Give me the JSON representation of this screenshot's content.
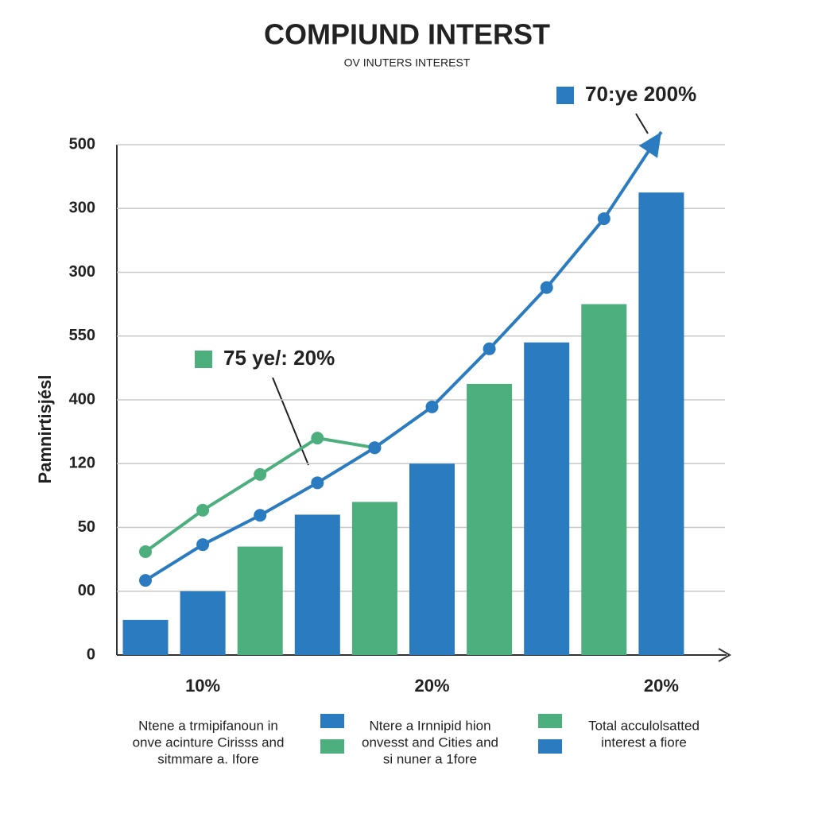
{
  "chart_data": {
    "type": "bar",
    "title": "COMPIUND INTERST",
    "subtitle": "OV INUTERS INTEREST",
    "y_label": "Pamnirtisjésl",
    "categories": [
      null,
      "10%",
      null,
      null,
      null,
      "20%",
      null,
      null,
      null,
      "20%"
    ],
    "values": [
      0.55,
      1.0,
      1.7,
      2.2,
      2.4,
      3.0,
      4.25,
      4.9,
      5.5,
      7.25
    ],
    "colors": [
      "#2a7bc0",
      "#2a7bc0",
      "#4caf7d",
      "#2a7bc0",
      "#4caf7d",
      "#2a7bc0",
      "#4caf7d",
      "#2a7bc0",
      "#4caf7d",
      "#2a7bc0"
    ],
    "lines": [
      {
        "color": "#4caf7d",
        "values": [
          1.62,
          2.27,
          2.83,
          3.4,
          3.25,
          null,
          null,
          null,
          null,
          null
        ]
      },
      {
        "color": "#2a7bc0",
        "values": [
          1.17,
          1.73,
          2.19,
          2.7,
          3.25,
          3.89,
          4.8,
          5.76,
          6.84,
          8.2
        ]
      }
    ],
    "ylim": [
      0,
      8
    ],
    "yticks": [
      0,
      {
        "value": 1,
        "label": "00"
      },
      {
        "value": 2,
        "label": "50"
      },
      {
        "value": 3,
        "label": "120"
      },
      {
        "value": 4,
        "label": "400"
      },
      {
        "value": 5,
        "label": "550"
      },
      {
        "value": 6,
        "label": "300"
      },
      {
        "value": 7,
        "label": "300"
      },
      {
        "value": 8,
        "label": "500"
      }
    ],
    "grid": true,
    "annotations": [
      {
        "text": "70:ye 200%",
        "color": "#2a7bc0"
      },
      {
        "text": "75 ye/: 20%",
        "color": "#4caf7d"
      }
    ],
    "legend": [
      {
        "lines": [
          "Ntene a trmipifanoun in",
          "onve acinture Cirisss and",
          "sitmmare a. Ifore"
        ],
        "swatches": []
      },
      {
        "lines": [
          "Ntere a Irnnipid hion",
          "onvesst and Cities and",
          "si nuner a 1fore"
        ],
        "swatches": [
          "#2a7bc0",
          "#4caf7d"
        ]
      },
      {
        "lines": [
          "Total acculolsatted",
          "interest a fiore"
        ],
        "swatches": [
          "#4caf7d",
          "#2a7bc0"
        ]
      }
    ]
  }
}
